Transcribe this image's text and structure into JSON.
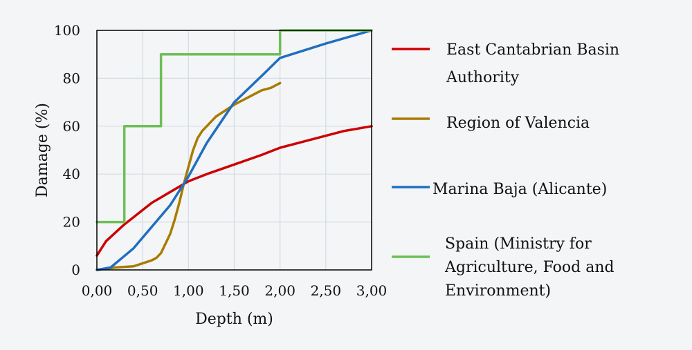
{
  "chart_data": {
    "type": "line",
    "xlabel": "Depth (m)",
    "ylabel": "Damage (%)",
    "xlim": [
      0,
      3
    ],
    "ylim": [
      0,
      100
    ],
    "x_ticks": [
      "0,00",
      "0,50",
      "1,00",
      "1,50",
      "2,00",
      "2,50",
      "3,00"
    ],
    "y_ticks": [
      "0",
      "20",
      "40",
      "60",
      "80",
      "100"
    ],
    "grid": true,
    "legend_position": "right",
    "series": [
      {
        "name": "East Cantabrian Basin Authority",
        "legend_lines": [
          "East Cantabrian Basin",
          "Authority"
        ],
        "color": "#cc0000",
        "x": [
          0,
          0.1,
          0.3,
          0.6,
          1.0,
          1.2,
          1.5,
          1.8,
          2.0,
          2.3,
          2.7,
          3.0
        ],
        "y": [
          6,
          12,
          19,
          28,
          37,
          40,
          44,
          48,
          51,
          54,
          58,
          60
        ]
      },
      {
        "name": "Region of Valencia",
        "legend_lines": [
          "Region of Valencia"
        ],
        "color": "#a87b00",
        "x": [
          0,
          0.2,
          0.4,
          0.6,
          0.65,
          0.7,
          0.75,
          0.8,
          0.85,
          0.9,
          0.95,
          1.0,
          1.05,
          1.1,
          1.15,
          1.2,
          1.3,
          1.5,
          1.7,
          1.8,
          1.9,
          2.0
        ],
        "y": [
          0,
          1,
          1.5,
          4,
          5,
          7,
          11,
          15,
          21,
          28,
          36,
          43,
          50,
          55,
          58,
          60,
          64,
          69,
          73,
          75,
          76,
          78
        ]
      },
      {
        "name": "Marina Baja (Alicante)",
        "legend_lines": [
          "Marina Baja (Alicante)"
        ],
        "color": "#1f6fc0",
        "x": [
          0,
          0.15,
          0.4,
          0.6,
          0.8,
          1.0,
          1.2,
          1.5,
          1.8,
          2.0,
          2.5,
          3.0
        ],
        "y": [
          0,
          1,
          9,
          18,
          27,
          39,
          53,
          70,
          81,
          88.5,
          94.5,
          100
        ]
      },
      {
        "name": "Spain (Ministry for Agriculture, Food and Environment)",
        "legend_lines": [
          "Spain (Ministry for",
          "Agriculture, Food and",
          "Environment)"
        ],
        "color": "#6cbf56",
        "x": [
          0,
          0.3,
          0.3,
          0.7,
          0.7,
          2.0,
          2.0,
          3.0
        ],
        "y": [
          20,
          20,
          60,
          60,
          90,
          90,
          100,
          100
        ]
      }
    ]
  }
}
